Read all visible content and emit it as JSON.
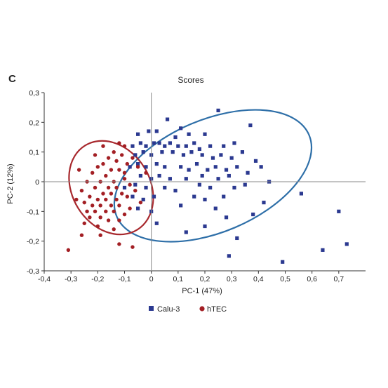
{
  "panel_label": "C",
  "chart_data": {
    "type": "scatter",
    "title": "Scores",
    "xlabel": "PC-1 (47%)",
    "ylabel": "PC-2 (12%)",
    "xlim": [
      -0.4,
      0.8
    ],
    "ylim": [
      -0.3,
      0.3
    ],
    "x_ticks": [
      -0.4,
      -0.3,
      -0.2,
      -0.1,
      0,
      0.1,
      0.2,
      0.3,
      0.4,
      0.5,
      0.6,
      0.7
    ],
    "y_ticks": [
      -0.3,
      -0.2,
      -0.1,
      0,
      0.1,
      0.2,
      0.3
    ],
    "x_tick_labels": [
      "-0,4",
      "-0,3",
      "-0,2",
      "-0,1",
      "0",
      "0,1",
      "0,2",
      "0,3",
      "0,4",
      "0,5",
      "0,6",
      "0,7"
    ],
    "y_tick_labels": [
      "-0,3",
      "-0,2",
      "-0,1",
      "0",
      "0,1",
      "0,2",
      "0,3"
    ],
    "grid": false,
    "zero_lines": true,
    "legend_position": "bottom-center",
    "series": [
      {
        "name": "Calu-3",
        "marker": "square",
        "color": "#2b3990",
        "ellipse": {
          "center": [
            0.23,
            0.02
          ],
          "rx": 0.39,
          "ry": 0.21,
          "rotation_deg": -23,
          "color": "#2e6fa8"
        },
        "points": [
          [
            -0.05,
            0.16
          ],
          [
            -0.01,
            0.17
          ],
          [
            0.02,
            0.17
          ],
          [
            0.06,
            0.21
          ],
          [
            0.09,
            0.15
          ],
          [
            0.11,
            0.18
          ],
          [
            0.14,
            0.16
          ],
          [
            0.2,
            0.16
          ],
          [
            0.25,
            0.24
          ],
          [
            0.37,
            0.19
          ],
          [
            -0.07,
            0.12
          ],
          [
            -0.04,
            0.13
          ],
          [
            -0.02,
            0.12
          ],
          [
            0.01,
            0.13
          ],
          [
            0.03,
            0.13
          ],
          [
            0.05,
            0.12
          ],
          [
            0.07,
            0.13
          ],
          [
            0.1,
            0.12
          ],
          [
            0.13,
            0.12
          ],
          [
            0.16,
            0.13
          ],
          [
            0.18,
            0.11
          ],
          [
            0.22,
            0.12
          ],
          [
            0.27,
            0.12
          ],
          [
            0.31,
            0.13
          ],
          [
            -0.06,
            0.09
          ],
          [
            -0.03,
            0.1
          ],
          [
            0,
            0.09
          ],
          [
            0.04,
            0.1
          ],
          [
            0.08,
            0.1
          ],
          [
            0.12,
            0.09
          ],
          [
            0.15,
            0.1
          ],
          [
            0.19,
            0.09
          ],
          [
            0.23,
            0.08
          ],
          [
            0.26,
            0.09
          ],
          [
            0.3,
            0.08
          ],
          [
            0.34,
            0.1
          ],
          [
            0.39,
            0.07
          ],
          [
            -0.08,
            0.05
          ],
          [
            -0.05,
            0.06
          ],
          [
            -0.02,
            0.05
          ],
          [
            0.02,
            0.06
          ],
          [
            0.05,
            0.05
          ],
          [
            0.11,
            0.05
          ],
          [
            0.14,
            0.04
          ],
          [
            0.17,
            0.06
          ],
          [
            0.21,
            0.04
          ],
          [
            0.24,
            0.05
          ],
          [
            0.28,
            0.04
          ],
          [
            0.32,
            0.05
          ],
          [
            0.36,
            0.03
          ],
          [
            0.41,
            0.05
          ],
          [
            -0.04,
            0.02
          ],
          [
            0,
            0.01
          ],
          [
            0.03,
            0.02
          ],
          [
            0.07,
            0.01
          ],
          [
            0.13,
            0.01
          ],
          [
            0.19,
            0.02
          ],
          [
            0.25,
            0.01
          ],
          [
            0.29,
            0.02
          ],
          [
            0.35,
            -0.01
          ],
          [
            0.44,
            0
          ],
          [
            -0.1,
            -0.02
          ],
          [
            -0.06,
            -0.01
          ],
          [
            -0.02,
            -0.02
          ],
          [
            0.05,
            -0.02
          ],
          [
            0.09,
            -0.03
          ],
          [
            0.18,
            -0.01
          ],
          [
            0.22,
            -0.02
          ],
          [
            0.31,
            -0.02
          ],
          [
            0.56,
            -0.04
          ],
          [
            -0.07,
            -0.05
          ],
          [
            -0.03,
            -0.06
          ],
          [
            0.01,
            -0.05
          ],
          [
            0.16,
            -0.05
          ],
          [
            0.2,
            -0.06
          ],
          [
            0.27,
            -0.05
          ],
          [
            0.42,
            -0.07
          ],
          [
            -0.05,
            -0.09
          ],
          [
            0,
            -0.1
          ],
          [
            0.11,
            -0.08
          ],
          [
            0.24,
            -0.09
          ],
          [
            0.38,
            -0.11
          ],
          [
            0.7,
            -0.1
          ],
          [
            0.02,
            -0.14
          ],
          [
            0.2,
            -0.15
          ],
          [
            0.28,
            -0.12
          ],
          [
            0.13,
            -0.17
          ],
          [
            0.32,
            -0.19
          ],
          [
            0.73,
            -0.21
          ],
          [
            0.64,
            -0.23
          ],
          [
            0.29,
            -0.25
          ],
          [
            0.49,
            -0.27
          ]
        ]
      },
      {
        "name": "hTEC",
        "marker": "circle",
        "color": "#a31f24",
        "ellipse": {
          "center": [
            -0.15,
            -0.02
          ],
          "rx": 0.185,
          "ry": 0.145,
          "rotation_deg": 58,
          "color": "#a8292e"
        },
        "points": [
          [
            -0.12,
            0.13
          ],
          [
            -0.14,
            0.1
          ],
          [
            -0.1,
            0.12
          ],
          [
            -0.16,
            0.08
          ],
          [
            -0.13,
            0.07
          ],
          [
            -0.18,
            0.06
          ],
          [
            -0.11,
            0.09
          ],
          [
            -0.09,
            0.06
          ],
          [
            -0.15,
            0.04
          ],
          [
            -0.2,
            0.05
          ],
          [
            -0.17,
            0.02
          ],
          [
            -0.12,
            0.04
          ],
          [
            -0.22,
            0.03
          ],
          [
            -0.14,
            0
          ],
          [
            -0.19,
            0
          ],
          [
            -0.1,
            0.01
          ],
          [
            -0.24,
            0
          ],
          [
            -0.16,
            -0.02
          ],
          [
            -0.21,
            -0.02
          ],
          [
            -0.13,
            -0.02
          ],
          [
            -0.08,
            -0.01
          ],
          [
            -0.26,
            -0.03
          ],
          [
            -0.18,
            -0.04
          ],
          [
            -0.15,
            -0.04
          ],
          [
            -0.11,
            -0.04
          ],
          [
            -0.23,
            -0.05
          ],
          [
            -0.2,
            -0.06
          ],
          [
            -0.17,
            -0.06
          ],
          [
            -0.13,
            -0.06
          ],
          [
            -0.09,
            -0.05
          ],
          [
            -0.28,
            -0.06
          ],
          [
            -0.25,
            -0.07
          ],
          [
            -0.22,
            -0.08
          ],
          [
            -0.19,
            -0.08
          ],
          [
            -0.15,
            -0.08
          ],
          [
            -0.12,
            -0.08
          ],
          [
            -0.08,
            -0.09
          ],
          [
            -0.24,
            -0.1
          ],
          [
            -0.21,
            -0.1
          ],
          [
            -0.17,
            -0.1
          ],
          [
            -0.14,
            -0.1
          ],
          [
            -0.1,
            -0.11
          ],
          [
            -0.23,
            -0.12
          ],
          [
            -0.19,
            -0.12
          ],
          [
            -0.16,
            -0.13
          ],
          [
            -0.12,
            -0.13
          ],
          [
            -0.25,
            -0.14
          ],
          [
            -0.2,
            -0.15
          ],
          [
            -0.14,
            -0.16
          ],
          [
            -0.26,
            -0.18
          ],
          [
            -0.19,
            -0.18
          ],
          [
            -0.12,
            -0.21
          ],
          [
            -0.31,
            -0.23
          ],
          [
            -0.07,
            -0.22
          ],
          [
            -0.02,
            0.03
          ],
          [
            -0.05,
            0.05
          ],
          [
            -0.07,
            0.08
          ],
          [
            -0.1,
            0.03
          ],
          [
            -0.06,
            -0.03
          ],
          [
            -0.04,
            -0.07
          ],
          [
            -0.18,
            0.12
          ],
          [
            -0.21,
            0.09
          ],
          [
            -0.27,
            0.04
          ]
        ]
      }
    ]
  }
}
